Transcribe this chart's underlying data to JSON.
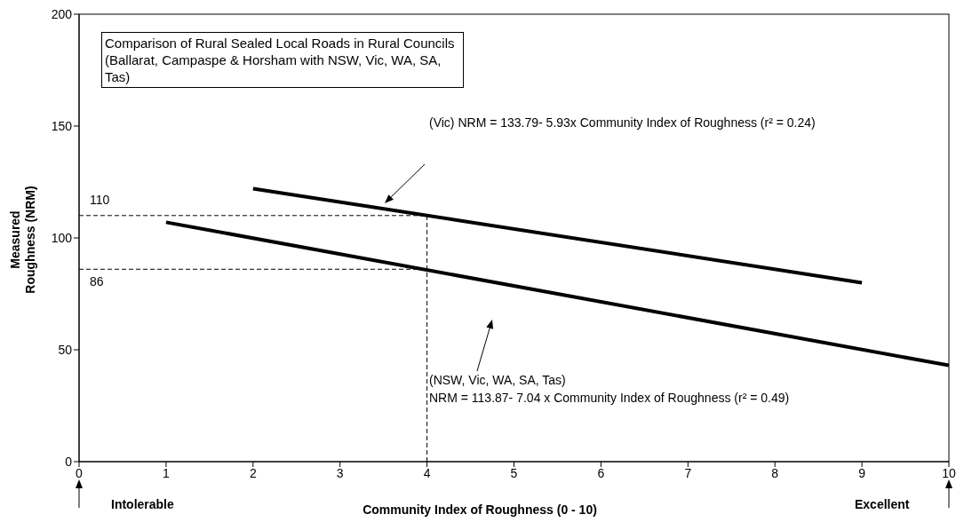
{
  "chart_data": {
    "type": "line",
    "xlabel": "Community Index of Roughness (0 - 10)",
    "ylabel": "Measured Roughness (NRM)",
    "xlim": [
      0,
      10
    ],
    "xticks": [
      0,
      1,
      2,
      3,
      4,
      5,
      6,
      7,
      8,
      9,
      10
    ],
    "ylim": [
      0,
      200
    ],
    "yticks": [
      0,
      50,
      100,
      150,
      200
    ],
    "marker": "none",
    "series": [
      {
        "color": "#000000",
        "x": [
          2,
          9
        ],
        "values": [
          122,
          80
        ],
        "line_style": "solid"
      },
      {
        "color": "#000000",
        "x": [
          1,
          10
        ],
        "values": [
          107,
          43
        ],
        "line_style": "solid"
      },
      {
        "color": "#000000",
        "x": [
          0,
          4
        ],
        "values": [
          110,
          110
        ],
        "line_style": "dashed"
      },
      {
        "color": "#000000",
        "x": [
          0,
          4
        ],
        "values": [
          86,
          86
        ],
        "line_style": "dashed"
      },
      {
        "color": "#000000",
        "x": [
          4,
          4
        ],
        "values": [
          0,
          110
        ],
        "line_style": "dashed"
      }
    ],
    "annotations": [
      "Comparison of Rural Sealed Local Roads in Rural Councils (Ballarat, Campaspe & Horsham with NSW, Vic, WA, SA, Tas)",
      {
        "text": "110",
        "x": 0,
        "y": 110
      },
      {
        "text": "86",
        "x": 0,
        "y": 86
      },
      "(Vic) NRM = 133.79- 5.93x Community Index of Roughness (r² = 0.24)",
      "(NSW, Vic, WA, SA, Tas)\nNRM = 113.87- 7.04 x Community Index of Roughness (r² = 0.49)",
      "Intolerable",
      "Excellent"
    ]
  }
}
